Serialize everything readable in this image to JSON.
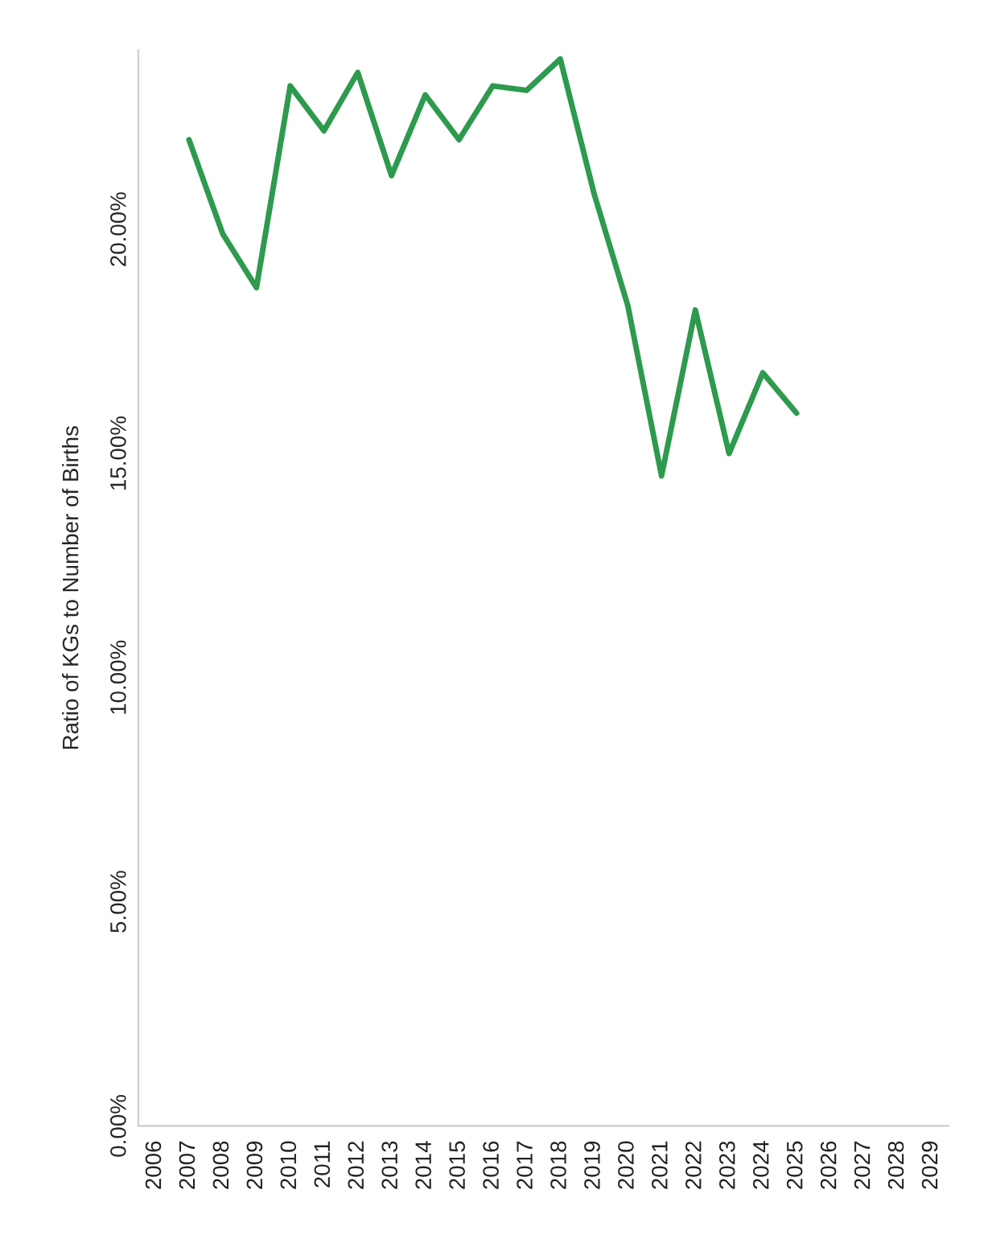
{
  "chart_data": {
    "type": "line",
    "ylabel": "Ratio of KGs to Number of Births",
    "categories": [
      "2006",
      "2007",
      "2008",
      "2009",
      "2010",
      "2011",
      "2012",
      "2013",
      "2014",
      "2015",
      "2016",
      "2017",
      "2018",
      "2019",
      "2020",
      "2021",
      "2022",
      "2023",
      "2024",
      "2025",
      "2026",
      "2027",
      "2028",
      "2029"
    ],
    "series": [
      {
        "color": "#2e9a4e",
        "values": [
          null,
          22.0,
          19.9,
          18.7,
          23.2,
          22.2,
          23.5,
          21.2,
          23.0,
          22.0,
          23.2,
          23.1,
          23.8,
          20.8,
          18.3,
          14.5,
          18.2,
          15.0,
          16.8,
          15.9,
          null,
          null,
          null,
          null
        ]
      }
    ],
    "ylim": [
      0,
      24
    ],
    "yticks": [
      {
        "value": 0,
        "label": "0.00%"
      },
      {
        "value": 5,
        "label": "5.00%"
      },
      {
        "value": 10,
        "label": "10.00%"
      },
      {
        "value": 15,
        "label": "15.00%"
      },
      {
        "value": 20,
        "label": "20.00%"
      }
    ],
    "grid": false,
    "legend": false,
    "marker": "none",
    "line_style": "solid"
  }
}
